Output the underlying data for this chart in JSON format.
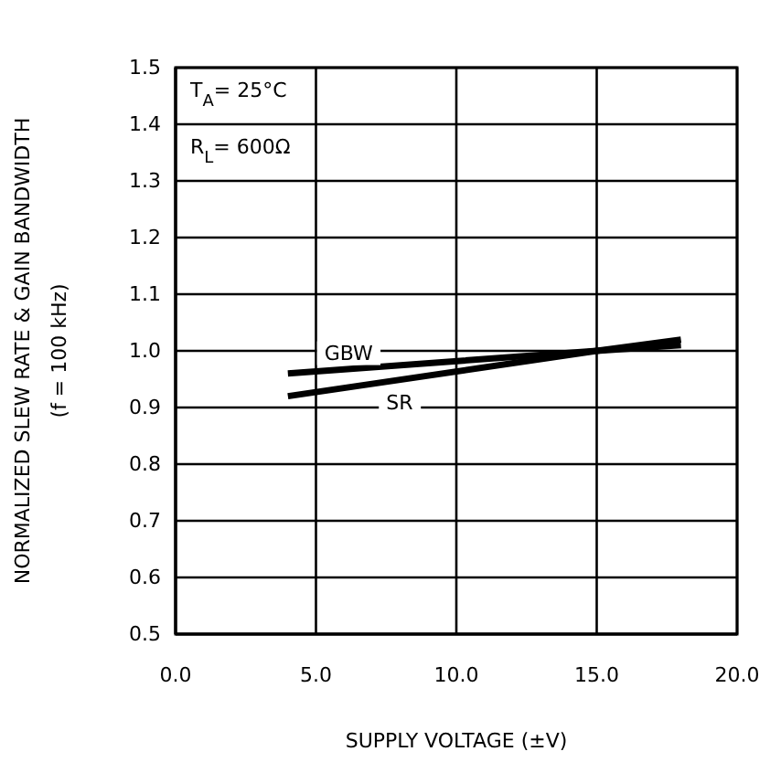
{
  "chart_data": {
    "type": "line",
    "xlabel": "SUPPLY VOLTAGE (±V)",
    "ylabel": "NORMALIZED SLEW RATE & GAIN BANDWIDTH\n(f = 100 kHz)",
    "annotations": [
      "T$_{A}$= 25°C",
      "R$_{L}$= 600Ω"
    ],
    "series": [
      {
        "name": "GBW",
        "color": "#000000",
        "x": [
          4,
          15,
          18
        ],
        "values": [
          0.96,
          1.0,
          1.01
        ]
      },
      {
        "name": "SR",
        "color": "#000000",
        "x": [
          4,
          15,
          18
        ],
        "values": [
          0.92,
          1.0,
          1.02
        ]
      }
    ],
    "xlim": [
      0,
      20
    ],
    "xticks": [
      {
        "value": 0,
        "label": "0.0"
      },
      {
        "value": 5,
        "label": "5.0"
      },
      {
        "value": 10,
        "label": "10.0"
      },
      {
        "value": 15,
        "label": "15.0"
      },
      {
        "value": 20,
        "label": "20.0"
      }
    ],
    "ylim": [
      0.5,
      1.5
    ],
    "yticks": [
      {
        "value": 0.5,
        "label": "0.5"
      },
      {
        "value": 0.6,
        "label": "0.6"
      },
      {
        "value": 0.7,
        "label": "0.7"
      },
      {
        "value": 0.8,
        "label": "0.8"
      },
      {
        "value": 0.9,
        "label": "0.9"
      },
      {
        "value": 1.0,
        "label": "1.0"
      },
      {
        "value": 1.1,
        "label": "1.1"
      },
      {
        "value": 1.2,
        "label": "1.2"
      },
      {
        "value": 1.3,
        "label": "1.3"
      },
      {
        "value": 1.4,
        "label": "1.4"
      },
      {
        "value": 1.5,
        "label": "1.5"
      }
    ],
    "grid": true
  }
}
